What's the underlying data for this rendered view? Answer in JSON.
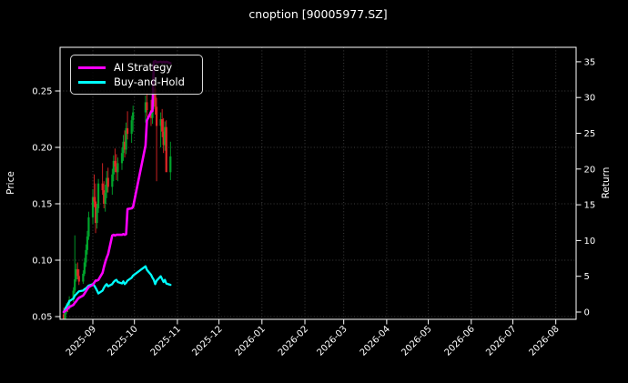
{
  "title": "cnoption [90005977.SZ]",
  "axes": {
    "price_label": "Price",
    "return_label": "Return",
    "price_ticks": [
      0.05,
      0.1,
      0.15,
      0.2,
      0.25
    ],
    "return_ticks": [
      0,
      5,
      10,
      15,
      20,
      25,
      30,
      35
    ],
    "x_tick_labels": [
      "2025-09",
      "2025-10",
      "2025-11",
      "2025-12",
      "2026-01",
      "2026-02",
      "2026-03",
      "2026-04",
      "2026-05",
      "2026-06",
      "2026-07",
      "2026-08"
    ]
  },
  "legend": {
    "items": [
      {
        "label": "AI Strategy",
        "color": "#ff00ff"
      },
      {
        "label": "Buy-and-Hold",
        "color": "#00ffff"
      }
    ]
  },
  "colors": {
    "background": "#000000",
    "spine": "#ffffff",
    "grid": "#3d3d3d",
    "up_candle": "#00a42c",
    "down_candle": "#e02626",
    "ai_strategy": "#ff00ff",
    "buy_and_hold": "#00ffff"
  },
  "chart_data": {
    "type": "candlestick+line",
    "title": "cnoption [90005977.SZ]",
    "xlabel": "",
    "price_axis": {
      "label": "Price",
      "ticks": [
        0.05,
        0.1,
        0.15,
        0.2,
        0.25
      ],
      "range": [
        0.0476,
        0.289
      ]
    },
    "return_axis": {
      "label": "Return",
      "ticks": [
        0,
        5,
        10,
        15,
        20,
        25,
        30,
        35
      ],
      "range": [
        -1.0,
        37.0
      ]
    },
    "x_range": [
      "2025-08-09",
      "2026-08-16"
    ],
    "grid": "dotted, price gridlines horizontal, month gridlines vertical",
    "legend_position": "upper left",
    "candles": {
      "dates": [
        "2025-08-11",
        "2025-08-12",
        "2025-08-13",
        "2025-08-14",
        "2025-08-15",
        "2025-08-18",
        "2025-08-19",
        "2025-08-20",
        "2025-08-21",
        "2025-08-22",
        "2025-08-25",
        "2025-08-26",
        "2025-08-27",
        "2025-08-28",
        "2025-08-29",
        "2025-09-01",
        "2025-09-02",
        "2025-09-03",
        "2025-09-04",
        "2025-09-05",
        "2025-09-08",
        "2025-09-09",
        "2025-09-10",
        "2025-09-11",
        "2025-09-12",
        "2025-09-15",
        "2025-09-16",
        "2025-09-17",
        "2025-09-18",
        "2025-09-19",
        "2025-09-22",
        "2025-09-23",
        "2025-09-24",
        "2025-09-25",
        "2025-09-26",
        "2025-09-29",
        "2025-09-30",
        "2025-10-09",
        "2025-10-10",
        "2025-10-13",
        "2025-10-14",
        "2025-10-15",
        "2025-10-16",
        "2025-10-17",
        "2025-10-20",
        "2025-10-21",
        "2025-10-22",
        "2025-10-23",
        "2025-10-24",
        "2025-10-27"
      ],
      "open": [
        0.052,
        0.047,
        0.054,
        0.059,
        0.057,
        0.065,
        0.073,
        0.083,
        0.092,
        0.086,
        0.081,
        0.088,
        0.098,
        0.109,
        0.121,
        0.138,
        0.156,
        0.152,
        0.133,
        0.146,
        0.168,
        0.162,
        0.15,
        0.16,
        0.173,
        0.165,
        0.176,
        0.188,
        0.183,
        0.178,
        0.186,
        0.195,
        0.205,
        0.198,
        0.217,
        0.212,
        0.224,
        0.231,
        0.24,
        0.233,
        0.226,
        0.243,
        0.252,
        0.236,
        0.219,
        0.225,
        0.214,
        0.202,
        0.218,
        0.178
      ],
      "high": [
        0.058,
        0.056,
        0.062,
        0.063,
        0.068,
        0.076,
        0.122,
        0.097,
        0.098,
        0.092,
        0.091,
        0.102,
        0.114,
        0.126,
        0.143,
        0.163,
        0.176,
        0.168,
        0.15,
        0.172,
        0.186,
        0.17,
        0.167,
        0.179,
        0.182,
        0.181,
        0.193,
        0.199,
        0.194,
        0.191,
        0.2,
        0.211,
        0.215,
        0.222,
        0.232,
        0.228,
        0.237,
        0.246,
        0.248,
        0.242,
        0.248,
        0.266,
        0.258,
        0.244,
        0.231,
        0.234,
        0.226,
        0.223,
        0.224,
        0.205
      ],
      "low": [
        0.044,
        0.046,
        0.052,
        0.054,
        0.056,
        0.063,
        0.071,
        0.081,
        0.083,
        0.078,
        0.079,
        0.086,
        0.094,
        0.105,
        0.118,
        0.132,
        0.147,
        0.124,
        0.128,
        0.142,
        0.158,
        0.146,
        0.143,
        0.155,
        0.16,
        0.158,
        0.17,
        0.178,
        0.171,
        0.17,
        0.18,
        0.188,
        0.191,
        0.194,
        0.207,
        0.204,
        0.214,
        0.222,
        0.227,
        0.219,
        0.221,
        0.234,
        0.229,
        0.17,
        0.2,
        0.209,
        0.195,
        0.197,
        0.186,
        0.171
      ],
      "close": [
        0.047,
        0.054,
        0.059,
        0.057,
        0.065,
        0.073,
        0.083,
        0.092,
        0.086,
        0.081,
        0.088,
        0.098,
        0.109,
        0.121,
        0.138,
        0.156,
        0.152,
        0.133,
        0.146,
        0.168,
        0.162,
        0.15,
        0.16,
        0.173,
        0.165,
        0.176,
        0.188,
        0.183,
        0.178,
        0.186,
        0.195,
        0.205,
        0.198,
        0.217,
        0.212,
        0.224,
        0.231,
        0.24,
        0.233,
        0.226,
        0.243,
        0.252,
        0.236,
        0.219,
        0.225,
        0.214,
        0.202,
        0.218,
        0.178,
        0.192
      ]
    },
    "series": [
      {
        "name": "AI Strategy",
        "axis": "return",
        "color": "#ff00ff",
        "linewidth": 2.6,
        "values": [
          0.0,
          0.15,
          0.3,
          0.5,
          0.7,
          1.0,
          1.3,
          1.5,
          1.8,
          2.0,
          2.3,
          2.6,
          2.9,
          3.2,
          3.5,
          3.8,
          4.1,
          4.4,
          4.4,
          4.5,
          5.5,
          6.3,
          7.0,
          7.6,
          8.1,
          10.7,
          10.8,
          10.7,
          10.8,
          10.8,
          10.8,
          10.9,
          10.8,
          10.9,
          14.4,
          14.5,
          14.7,
          23.3,
          26.8,
          28.0,
          28.1,
          35.0,
          35.1,
          34.9,
          35.0,
          34.9,
          35.0,
          34.9,
          35.0,
          34.8
        ]
      },
      {
        "name": "Buy-and-Hold",
        "axis": "return",
        "color": "#00ffff",
        "linewidth": 2.3,
        "values": [
          0.0,
          0.4,
          0.8,
          1.1,
          1.5,
          1.9,
          2.3,
          2.5,
          2.7,
          2.9,
          3.0,
          3.2,
          3.3,
          3.5,
          3.7,
          3.9,
          3.7,
          3.4,
          3.0,
          2.6,
          3.0,
          3.4,
          3.7,
          3.9,
          3.6,
          3.9,
          4.2,
          4.4,
          4.5,
          4.2,
          4.0,
          4.3,
          3.9,
          4.1,
          4.4,
          4.8,
          5.1,
          6.4,
          5.9,
          5.2,
          4.8,
          4.5,
          3.9,
          4.4,
          5.0,
          4.6,
          4.2,
          4.5,
          4.0,
          3.8
        ]
      }
    ]
  }
}
